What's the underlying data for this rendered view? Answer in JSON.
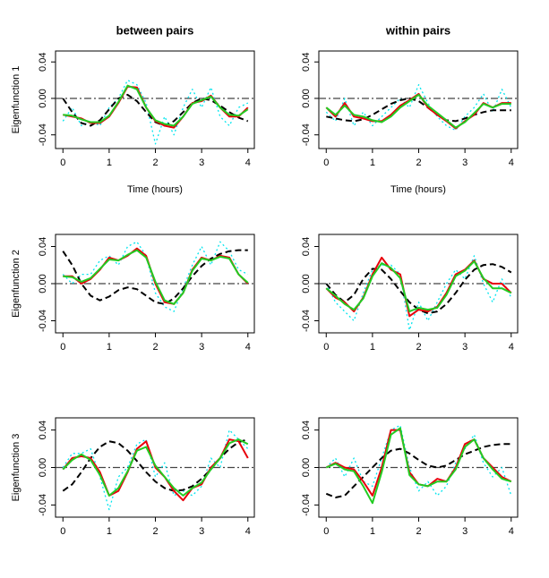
{
  "chart_data": [
    {
      "type": "line",
      "title": "between pairs",
      "ylabel": "Eigenfunction 1",
      "xlabel": "Time (hours)",
      "x": [
        0,
        0.2,
        0.4,
        0.6,
        0.8,
        1,
        1.2,
        1.4,
        1.6,
        1.8,
        2,
        2.2,
        2.4,
        2.6,
        2.8,
        3,
        3.2,
        3.4,
        3.6,
        3.8,
        4
      ],
      "xlim": [
        -0.16,
        4.14
      ],
      "ylim": [
        -0.055,
        0.052
      ],
      "xticks": [
        0,
        1,
        2,
        3,
        4
      ],
      "yticks": [
        -0.04,
        {
          "value": 0,
          "label": "0.00"
        },
        0.04
      ],
      "hline": 0,
      "series": [
        {
          "color": "#00e5ee",
          "dash": "dotted",
          "values": [
            -0.025,
            -0.01,
            -0.03,
            -0.025,
            -0.03,
            -0.01,
            0.0,
            0.02,
            0.015,
            -0.005,
            -0.05,
            -0.02,
            -0.04,
            -0.01,
            0.01,
            -0.01,
            0.012,
            -0.02,
            -0.03,
            -0.01,
            -0.005
          ]
        },
        {
          "color": "#000000",
          "dash": "dashed",
          "values": [
            0.0,
            -0.015,
            -0.027,
            -0.03,
            -0.024,
            -0.012,
            0.0,
            0.004,
            -0.003,
            -0.015,
            -0.026,
            -0.03,
            -0.025,
            -0.015,
            -0.005,
            0.0,
            -0.002,
            -0.008,
            -0.015,
            -0.021,
            -0.025
          ]
        },
        {
          "color": "#e8000b",
          "dash": "solid",
          "values": [
            -0.018,
            -0.02,
            -0.022,
            -0.027,
            -0.027,
            -0.02,
            -0.005,
            0.013,
            0.012,
            -0.01,
            -0.025,
            -0.03,
            -0.032,
            -0.02,
            -0.005,
            -0.003,
            0.003,
            -0.01,
            -0.02,
            -0.02,
            -0.01
          ]
        },
        {
          "color": "#22cc22",
          "dash": "solid",
          "values": [
            -0.018,
            -0.019,
            -0.023,
            -0.026,
            -0.026,
            -0.019,
            -0.004,
            0.014,
            0.01,
            -0.01,
            -0.024,
            -0.028,
            -0.03,
            -0.02,
            -0.006,
            -0.002,
            0.002,
            -0.01,
            -0.018,
            -0.019,
            -0.012
          ]
        }
      ]
    },
    {
      "type": "line",
      "title": "within pairs",
      "xlabel": "Time (hours)",
      "x": [
        0,
        0.2,
        0.4,
        0.6,
        0.8,
        1,
        1.2,
        1.4,
        1.6,
        1.8,
        2,
        2.2,
        2.4,
        2.6,
        2.8,
        3,
        3.2,
        3.4,
        3.6,
        3.8,
        4
      ],
      "xlim": [
        -0.16,
        4.14
      ],
      "ylim": [
        -0.055,
        0.052
      ],
      "xticks": [
        0,
        1,
        2,
        3,
        4
      ],
      "yticks": [
        -0.04,
        {
          "value": 0,
          "label": "0.00"
        },
        0.04
      ],
      "hline": 0,
      "series": [
        {
          "color": "#00e5ee",
          "dash": "dotted",
          "values": [
            -0.015,
            -0.025,
            0.0,
            -0.03,
            -0.015,
            -0.03,
            -0.02,
            -0.01,
            0.0,
            -0.01,
            0.015,
            -0.005,
            -0.02,
            -0.03,
            -0.035,
            -0.02,
            -0.01,
            0.005,
            -0.015,
            0.01,
            -0.01
          ]
        },
        {
          "color": "#000000",
          "dash": "dashed",
          "values": [
            -0.02,
            -0.022,
            -0.024,
            -0.025,
            -0.023,
            -0.018,
            -0.012,
            -0.006,
            -0.002,
            0.0,
            -0.003,
            -0.01,
            -0.018,
            -0.024,
            -0.025,
            -0.022,
            -0.018,
            -0.015,
            -0.013,
            -0.013,
            -0.013
          ]
        },
        {
          "color": "#e8000b",
          "dash": "solid",
          "values": [
            -0.01,
            -0.02,
            -0.005,
            -0.02,
            -0.022,
            -0.025,
            -0.025,
            -0.018,
            -0.008,
            -0.002,
            0.005,
            -0.01,
            -0.018,
            -0.025,
            -0.033,
            -0.025,
            -0.018,
            -0.005,
            -0.01,
            -0.005,
            -0.005
          ]
        },
        {
          "color": "#22cc22",
          "dash": "solid",
          "values": [
            -0.01,
            -0.018,
            -0.008,
            -0.018,
            -0.02,
            -0.024,
            -0.026,
            -0.02,
            -0.01,
            -0.003,
            0.004,
            -0.008,
            -0.016,
            -0.024,
            -0.032,
            -0.026,
            -0.016,
            -0.006,
            -0.01,
            -0.006,
            -0.006
          ]
        }
      ]
    },
    {
      "type": "line",
      "ylabel": "Eigenfunction 2",
      "x": [
        0,
        0.2,
        0.4,
        0.6,
        0.8,
        1,
        1.2,
        1.4,
        1.6,
        1.8,
        2,
        2.2,
        2.4,
        2.6,
        2.8,
        3,
        3.2,
        3.4,
        3.6,
        3.8,
        4
      ],
      "xlim": [
        -0.16,
        4.14
      ],
      "ylim": [
        -0.053,
        0.053
      ],
      "xticks": [
        0,
        1,
        2,
        3,
        4
      ],
      "yticks": [
        -0.04,
        {
          "value": 0,
          "label": "0.00"
        },
        0.04
      ],
      "hline": 0,
      "series": [
        {
          "color": "#00e5ee",
          "dash": "dotted",
          "values": [
            0.01,
            0.0,
            0.01,
            0.01,
            0.025,
            0.03,
            0.02,
            0.04,
            0.045,
            0.03,
            -0.01,
            -0.025,
            -0.03,
            -0.005,
            0.02,
            0.04,
            0.02,
            0.045,
            0.035,
            0.015,
            0.01
          ]
        },
        {
          "color": "#000000",
          "dash": "dashed",
          "values": [
            0.035,
            0.02,
            0.0,
            -0.013,
            -0.018,
            -0.014,
            -0.007,
            -0.004,
            -0.006,
            -0.013,
            -0.02,
            -0.022,
            -0.016,
            -0.005,
            0.008,
            0.019,
            0.027,
            0.032,
            0.035,
            0.036,
            0.036
          ]
        },
        {
          "color": "#e8000b",
          "dash": "solid",
          "values": [
            0.008,
            0.008,
            0.0,
            0.005,
            0.015,
            0.028,
            0.025,
            0.03,
            0.038,
            0.03,
            0.0,
            -0.02,
            -0.022,
            -0.01,
            0.015,
            0.028,
            0.025,
            0.03,
            0.028,
            0.01,
            0.0
          ]
        },
        {
          "color": "#22cc22",
          "dash": "solid",
          "values": [
            0.008,
            0.007,
            0.002,
            0.006,
            0.016,
            0.026,
            0.025,
            0.031,
            0.036,
            0.028,
            0.002,
            -0.018,
            -0.022,
            -0.01,
            0.014,
            0.027,
            0.025,
            0.029,
            0.027,
            0.01,
            0.001
          ]
        }
      ]
    },
    {
      "type": "line",
      "x": [
        0,
        0.2,
        0.4,
        0.6,
        0.8,
        1,
        1.2,
        1.4,
        1.6,
        1.8,
        2,
        2.2,
        2.4,
        2.6,
        2.8,
        3,
        3.2,
        3.4,
        3.6,
        3.8,
        4
      ],
      "xlim": [
        -0.16,
        4.14
      ],
      "ylim": [
        -0.053,
        0.053
      ],
      "xticks": [
        0,
        1,
        2,
        3,
        4
      ],
      "yticks": [
        -0.04,
        {
          "value": 0,
          "label": "0.00"
        },
        0.04
      ],
      "hline": 0,
      "series": [
        {
          "color": "#00e5ee",
          "dash": "dotted",
          "values": [
            0.0,
            -0.02,
            -0.03,
            -0.04,
            -0.01,
            0.015,
            0.02,
            0.02,
            0.01,
            -0.05,
            -0.02,
            -0.04,
            -0.02,
            0.0,
            0.015,
            0.005,
            0.03,
            0.0,
            -0.02,
            0.005,
            -0.015
          ]
        },
        {
          "color": "#000000",
          "dash": "dashed",
          "values": [
            0.0,
            -0.012,
            -0.02,
            -0.012,
            0.005,
            0.016,
            0.015,
            0.005,
            -0.008,
            -0.02,
            -0.028,
            -0.032,
            -0.03,
            -0.022,
            -0.01,
            0.004,
            0.015,
            0.02,
            0.021,
            0.018,
            0.012
          ]
        },
        {
          "color": "#e8000b",
          "dash": "solid",
          "values": [
            -0.005,
            -0.015,
            -0.02,
            -0.03,
            -0.015,
            0.01,
            0.028,
            0.015,
            0.01,
            -0.035,
            -0.028,
            -0.03,
            -0.025,
            -0.01,
            0.01,
            0.015,
            0.025,
            0.005,
            0.0,
            0.0,
            -0.01
          ]
        },
        {
          "color": "#22cc22",
          "dash": "solid",
          "values": [
            -0.005,
            -0.013,
            -0.022,
            -0.028,
            -0.016,
            0.008,
            0.022,
            0.017,
            0.006,
            -0.03,
            -0.026,
            -0.028,
            -0.026,
            -0.012,
            0.008,
            0.014,
            0.024,
            0.006,
            -0.005,
            -0.005,
            -0.01
          ]
        }
      ]
    },
    {
      "type": "line",
      "ylabel": "Eigenfunction 3",
      "x": [
        0,
        0.2,
        0.4,
        0.6,
        0.8,
        1,
        1.2,
        1.4,
        1.6,
        1.8,
        2,
        2.2,
        2.4,
        2.6,
        2.8,
        3,
        3.2,
        3.4,
        3.6,
        3.8,
        4
      ],
      "xlim": [
        -0.16,
        4.14
      ],
      "ylim": [
        -0.053,
        0.053
      ],
      "xticks": [
        0,
        1,
        2,
        3,
        4
      ],
      "yticks": [
        -0.04,
        {
          "value": 0,
          "label": "0.00"
        },
        0.04
      ],
      "hline": 0,
      "series": [
        {
          "color": "#00e5ee",
          "dash": "dotted",
          "values": [
            0.0,
            0.015,
            0.015,
            0.02,
            -0.01,
            -0.045,
            -0.01,
            0.0,
            0.025,
            0.03,
            -0.01,
            0.005,
            -0.03,
            -0.025,
            -0.03,
            -0.02,
            0.01,
            0.0,
            0.04,
            0.03,
            0.02
          ]
        },
        {
          "color": "#000000",
          "dash": "dashed",
          "values": [
            -0.025,
            -0.018,
            -0.005,
            0.01,
            0.022,
            0.028,
            0.026,
            0.018,
            0.007,
            -0.005,
            -0.015,
            -0.022,
            -0.025,
            -0.024,
            -0.02,
            -0.012,
            -0.002,
            0.01,
            0.02,
            0.027,
            0.03
          ]
        },
        {
          "color": "#e8000b",
          "dash": "solid",
          "values": [
            -0.002,
            0.01,
            0.012,
            0.01,
            -0.005,
            -0.03,
            -0.025,
            -0.005,
            0.02,
            0.028,
            0.0,
            -0.01,
            -0.025,
            -0.035,
            -0.022,
            -0.018,
            0.0,
            0.01,
            0.03,
            0.028,
            0.01
          ]
        },
        {
          "color": "#22cc22",
          "dash": "solid",
          "values": [
            -0.002,
            0.008,
            0.014,
            0.008,
            -0.008,
            -0.03,
            -0.022,
            -0.004,
            0.018,
            0.022,
            0.002,
            -0.01,
            -0.022,
            -0.03,
            -0.022,
            -0.016,
            -0.002,
            0.01,
            0.026,
            0.03,
            0.025
          ]
        }
      ]
    },
    {
      "type": "line",
      "x": [
        0,
        0.2,
        0.4,
        0.6,
        0.8,
        1,
        1.2,
        1.4,
        1.6,
        1.8,
        2,
        2.2,
        2.4,
        2.6,
        2.8,
        3,
        3.2,
        3.4,
        3.6,
        3.8,
        4
      ],
      "xlim": [
        -0.16,
        4.14
      ],
      "ylim": [
        -0.053,
        0.053
      ],
      "xticks": [
        0,
        1,
        2,
        3,
        4
      ],
      "yticks": [
        -0.04,
        {
          "value": 0,
          "label": "0.00"
        },
        0.04
      ],
      "hline": 0,
      "series": [
        {
          "color": "#00e5ee",
          "dash": "dotted",
          "values": [
            0.0,
            0.01,
            -0.01,
            0.01,
            -0.015,
            -0.02,
            0.01,
            0.04,
            0.045,
            0.0,
            -0.025,
            -0.015,
            -0.03,
            -0.02,
            0.005,
            0.02,
            0.035,
            0.005,
            -0.01,
            0.0,
            -0.03
          ]
        },
        {
          "color": "#000000",
          "dash": "dashed",
          "values": [
            -0.028,
            -0.032,
            -0.03,
            -0.02,
            -0.01,
            0.0,
            0.01,
            0.018,
            0.02,
            0.015,
            0.008,
            0.002,
            0.0,
            0.002,
            0.008,
            0.014,
            0.018,
            0.022,
            0.024,
            0.025,
            0.025
          ]
        },
        {
          "color": "#e8000b",
          "dash": "solid",
          "values": [
            0.0,
            0.005,
            0.0,
            -0.002,
            -0.015,
            -0.03,
            0.0,
            0.04,
            0.04,
            -0.005,
            -0.018,
            -0.02,
            -0.012,
            -0.015,
            0.0,
            0.025,
            0.03,
            0.01,
            0.0,
            -0.01,
            -0.015
          ]
        },
        {
          "color": "#22cc22",
          "dash": "solid",
          "values": [
            0.0,
            0.004,
            -0.002,
            -0.004,
            -0.02,
            -0.038,
            -0.005,
            0.035,
            0.042,
            -0.008,
            -0.018,
            -0.02,
            -0.015,
            -0.015,
            -0.002,
            0.022,
            0.03,
            0.01,
            -0.002,
            -0.012,
            -0.015
          ]
        }
      ]
    }
  ]
}
